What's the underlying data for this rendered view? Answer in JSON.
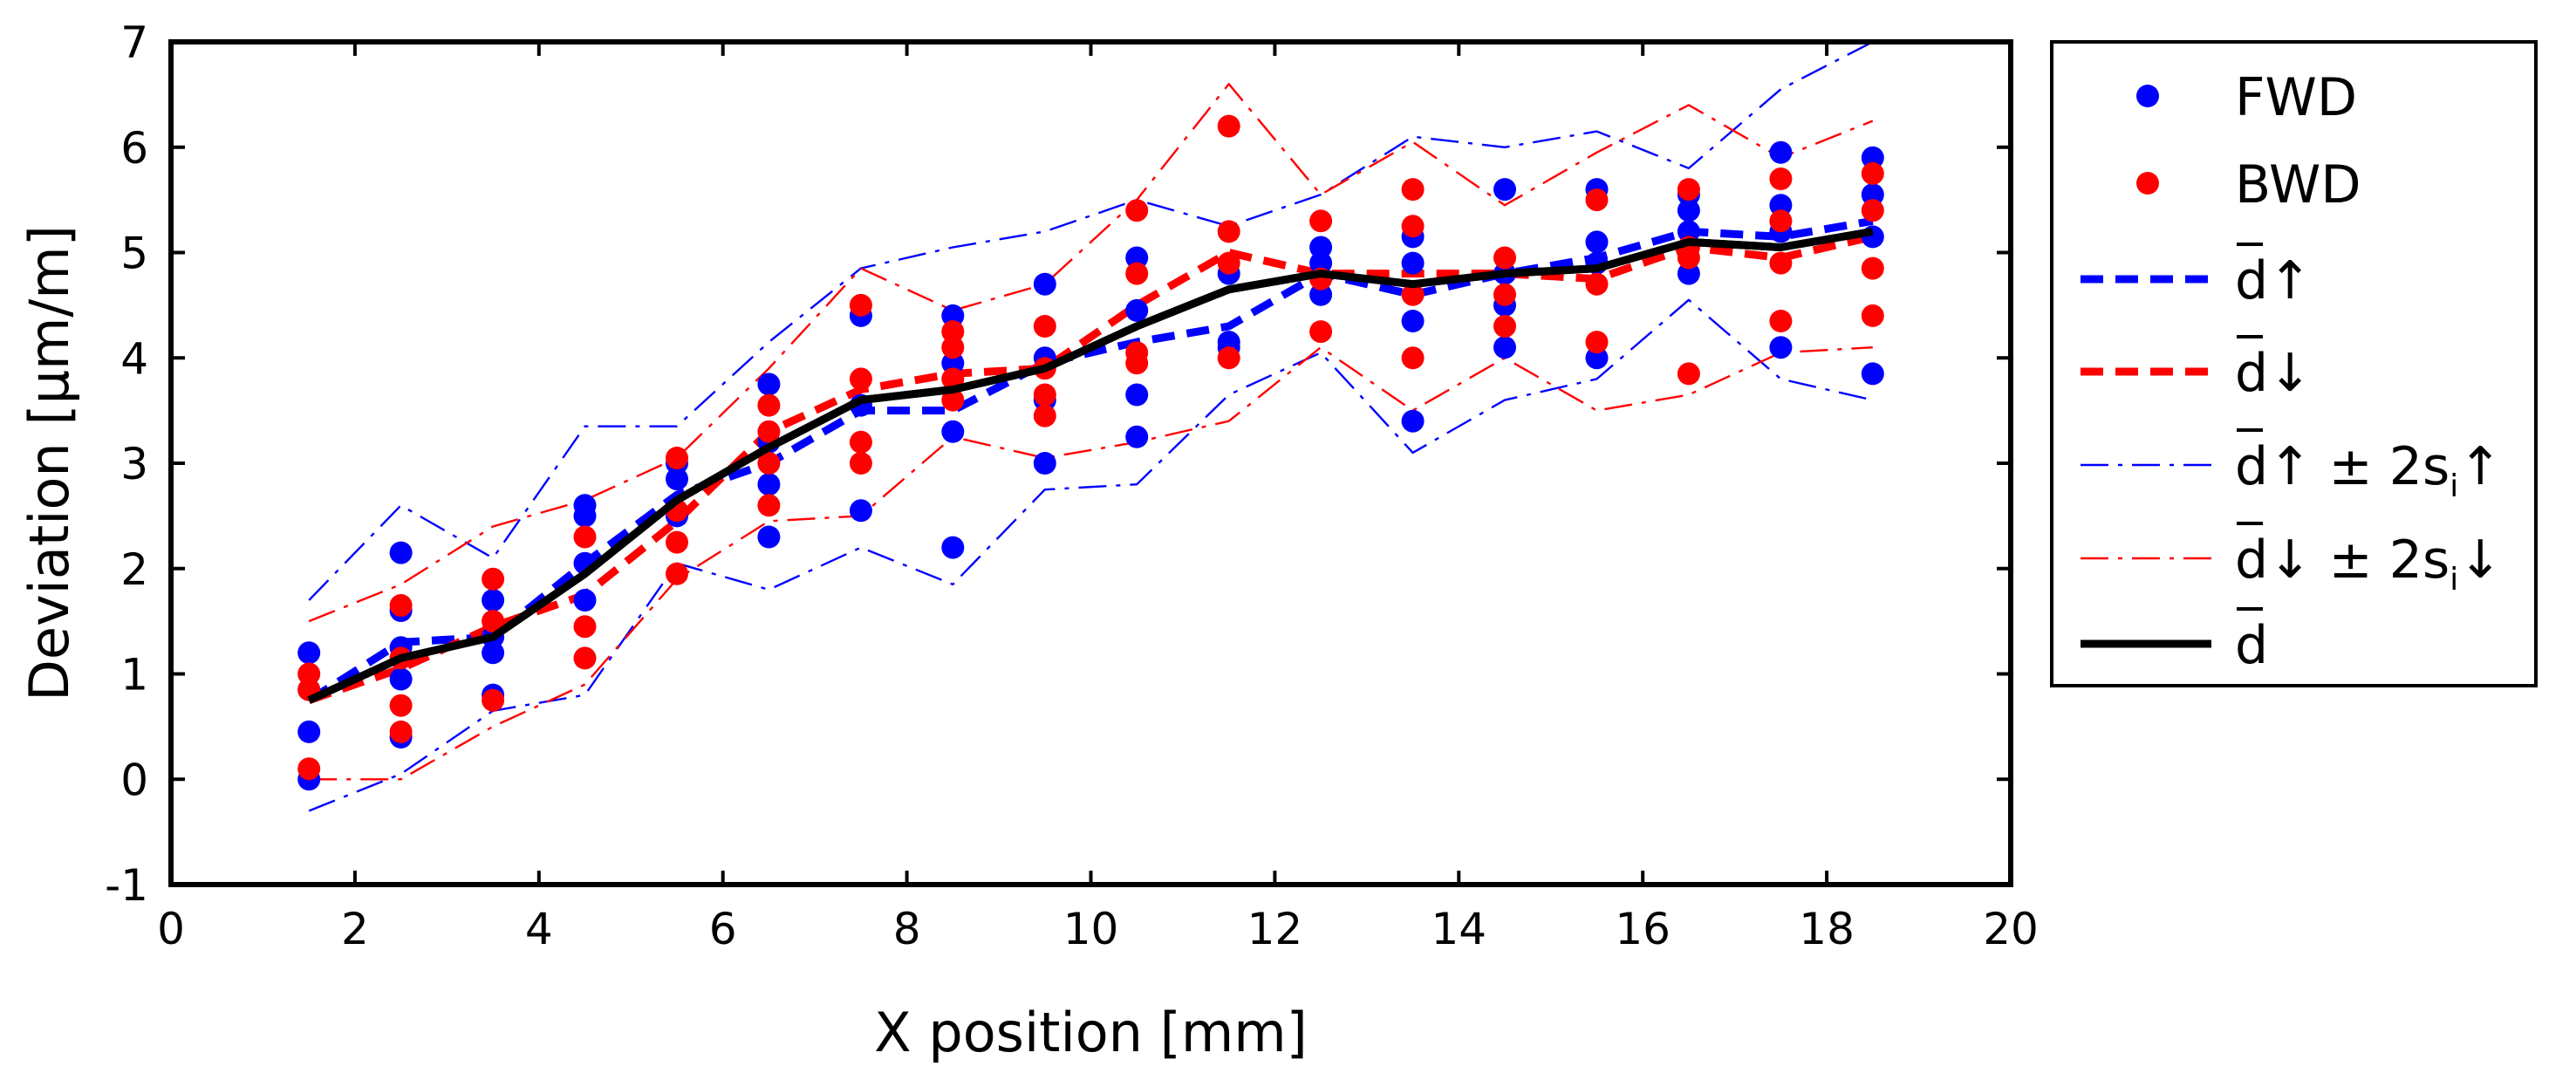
{
  "chart_data": {
    "type": "scatter",
    "title": "",
    "xlabel": "X position [mm]",
    "ylabel": "Deviation [μm/m]",
    "xlim": [
      0,
      20
    ],
    "ylim": [
      -1,
      7
    ],
    "xticks": [
      0,
      2,
      4,
      6,
      8,
      10,
      12,
      14,
      16,
      18,
      20
    ],
    "yticks": [
      -1,
      0,
      1,
      2,
      3,
      4,
      5,
      6,
      7
    ],
    "grid": false,
    "legend_position": "outside-right",
    "x": [
      1.5,
      2.5,
      3.5,
      4.5,
      5.5,
      6.5,
      7.5,
      8.5,
      9.5,
      10.5,
      11.5,
      12.5,
      13.5,
      14.5,
      15.5,
      16.5,
      17.5,
      18.5
    ],
    "scatter_series": [
      {
        "name": "FWD",
        "color": "#0000ff",
        "points": [
          [
            1.5,
            0.0
          ],
          [
            1.5,
            0.45
          ],
          [
            1.5,
            0.85
          ],
          [
            1.5,
            1.2
          ],
          [
            2.5,
            0.4
          ],
          [
            2.5,
            0.95
          ],
          [
            2.5,
            1.25
          ],
          [
            2.5,
            1.6
          ],
          [
            2.5,
            2.15
          ],
          [
            3.5,
            0.8
          ],
          [
            3.5,
            1.2
          ],
          [
            3.5,
            1.35
          ],
          [
            3.5,
            1.7
          ],
          [
            4.5,
            1.7
          ],
          [
            4.5,
            2.05
          ],
          [
            4.5,
            2.5
          ],
          [
            4.5,
            2.6
          ],
          [
            5.5,
            2.5
          ],
          [
            5.5,
            2.85
          ],
          [
            5.5,
            3.0
          ],
          [
            6.5,
            2.3
          ],
          [
            6.5,
            2.8
          ],
          [
            6.5,
            3.2
          ],
          [
            6.5,
            3.75
          ],
          [
            7.5,
            2.55
          ],
          [
            7.5,
            3.55
          ],
          [
            7.5,
            4.4
          ],
          [
            8.5,
            2.2
          ],
          [
            8.5,
            3.3
          ],
          [
            8.5,
            3.95
          ],
          [
            8.5,
            4.4
          ],
          [
            9.5,
            3.0
          ],
          [
            9.5,
            3.6
          ],
          [
            9.5,
            4.0
          ],
          [
            9.5,
            4.7
          ],
          [
            10.5,
            3.25
          ],
          [
            10.5,
            3.65
          ],
          [
            10.5,
            4.45
          ],
          [
            10.5,
            4.95
          ],
          [
            11.5,
            4.1
          ],
          [
            11.5,
            4.15
          ],
          [
            11.5,
            4.8
          ],
          [
            12.5,
            4.6
          ],
          [
            12.5,
            4.9
          ],
          [
            12.5,
            5.05
          ],
          [
            13.5,
            3.4
          ],
          [
            13.5,
            4.35
          ],
          [
            13.5,
            4.9
          ],
          [
            13.5,
            5.15
          ],
          [
            14.5,
            4.1
          ],
          [
            14.5,
            4.5
          ],
          [
            14.5,
            4.8
          ],
          [
            14.5,
            5.6
          ],
          [
            15.5,
            4.0
          ],
          [
            15.5,
            4.9
          ],
          [
            15.5,
            5.1
          ],
          [
            15.5,
            5.6
          ],
          [
            16.5,
            4.8
          ],
          [
            16.5,
            5.2
          ],
          [
            16.5,
            5.4
          ],
          [
            16.5,
            5.55
          ],
          [
            17.5,
            4.1
          ],
          [
            17.5,
            5.2
          ],
          [
            17.5,
            5.45
          ],
          [
            17.5,
            5.95
          ],
          [
            18.5,
            3.85
          ],
          [
            18.5,
            5.15
          ],
          [
            18.5,
            5.55
          ],
          [
            18.5,
            5.9
          ]
        ]
      },
      {
        "name": "BWD",
        "color": "#ff0000",
        "points": [
          [
            1.5,
            0.1
          ],
          [
            1.5,
            0.85
          ],
          [
            1.5,
            1.0
          ],
          [
            2.5,
            0.45
          ],
          [
            2.5,
            0.7
          ],
          [
            2.5,
            1.15
          ],
          [
            2.5,
            1.65
          ],
          [
            3.5,
            0.75
          ],
          [
            3.5,
            1.5
          ],
          [
            3.5,
            1.9
          ],
          [
            4.5,
            1.15
          ],
          [
            4.5,
            1.45
          ],
          [
            4.5,
            2.3
          ],
          [
            5.5,
            1.95
          ],
          [
            5.5,
            2.25
          ],
          [
            5.5,
            2.55
          ],
          [
            5.5,
            3.05
          ],
          [
            6.5,
            2.6
          ],
          [
            6.5,
            3.0
          ],
          [
            6.5,
            3.3
          ],
          [
            6.5,
            3.55
          ],
          [
            7.5,
            3.0
          ],
          [
            7.5,
            3.2
          ],
          [
            7.5,
            3.8
          ],
          [
            7.5,
            4.5
          ],
          [
            8.5,
            3.6
          ],
          [
            8.5,
            3.8
          ],
          [
            8.5,
            4.1
          ],
          [
            8.5,
            4.25
          ],
          [
            9.5,
            3.45
          ],
          [
            9.5,
            3.65
          ],
          [
            9.5,
            3.9
          ],
          [
            9.5,
            4.3
          ],
          [
            10.5,
            3.95
          ],
          [
            10.5,
            4.05
          ],
          [
            10.5,
            4.8
          ],
          [
            10.5,
            5.4
          ],
          [
            11.5,
            4.0
          ],
          [
            11.5,
            4.9
          ],
          [
            11.5,
            5.2
          ],
          [
            11.5,
            6.2
          ],
          [
            12.5,
            4.25
          ],
          [
            12.5,
            4.75
          ],
          [
            12.5,
            5.3
          ],
          [
            13.5,
            4.0
          ],
          [
            13.5,
            4.6
          ],
          [
            13.5,
            5.25
          ],
          [
            13.5,
            5.6
          ],
          [
            14.5,
            4.3
          ],
          [
            14.5,
            4.6
          ],
          [
            14.5,
            4.95
          ],
          [
            15.5,
            4.15
          ],
          [
            15.5,
            4.7
          ],
          [
            15.5,
            5.5
          ],
          [
            16.5,
            3.85
          ],
          [
            16.5,
            4.95
          ],
          [
            16.5,
            5.05
          ],
          [
            16.5,
            5.6
          ],
          [
            17.5,
            4.35
          ],
          [
            17.5,
            4.9
          ],
          [
            17.5,
            5.3
          ],
          [
            17.5,
            5.7
          ],
          [
            18.5,
            4.4
          ],
          [
            18.5,
            4.85
          ],
          [
            18.5,
            5.4
          ],
          [
            18.5,
            5.75
          ]
        ]
      }
    ],
    "line_series": [
      {
        "name": "d̅↑",
        "color": "#0000ff",
        "style": "dashed",
        "values": [
          0.75,
          1.3,
          1.35,
          2.05,
          2.7,
          3.0,
          3.5,
          3.5,
          3.95,
          4.15,
          4.3,
          4.8,
          4.6,
          4.8,
          4.95,
          5.2,
          5.15,
          5.3
        ]
      },
      {
        "name": "d̅↓",
        "color": "#ff0000",
        "style": "dashed",
        "values": [
          0.75,
          1.05,
          1.45,
          1.75,
          2.45,
          3.3,
          3.7,
          3.85,
          3.9,
          4.5,
          5.0,
          4.8,
          4.8,
          4.8,
          4.75,
          5.05,
          4.95,
          5.15
        ]
      },
      {
        "name": "d̅↑ + 2sᵢ↑",
        "color": "#0000ff",
        "style": "dashdot",
        "values": [
          1.7,
          2.6,
          2.1,
          3.35,
          3.35,
          4.15,
          4.85,
          5.05,
          5.2,
          5.5,
          5.25,
          5.55,
          6.1,
          6.0,
          6.15,
          5.8,
          6.55,
          7.0
        ]
      },
      {
        "name": "d̅↑ − 2sᵢ↑",
        "color": "#0000ff",
        "style": "dashdot",
        "values": [
          -0.3,
          0.05,
          0.65,
          0.8,
          2.05,
          1.8,
          2.2,
          1.85,
          2.75,
          2.8,
          3.65,
          4.05,
          3.1,
          3.6,
          3.8,
          4.55,
          3.8,
          3.6
        ]
      },
      {
        "name": "d̅↓ + 2sᵢ↓",
        "color": "#ff0000",
        "style": "dashdot",
        "values": [
          1.5,
          1.85,
          2.4,
          2.65,
          3.05,
          3.9,
          4.85,
          4.45,
          4.7,
          5.5,
          6.6,
          5.55,
          6.05,
          5.45,
          5.95,
          6.4,
          5.9,
          6.25
        ]
      },
      {
        "name": "d̅↓ − 2sᵢ↓",
        "color": "#ff0000",
        "style": "dashdot",
        "values": [
          0.0,
          0.0,
          0.5,
          0.9,
          1.9,
          2.45,
          2.5,
          3.25,
          3.05,
          3.2,
          3.4,
          4.1,
          3.5,
          4.0,
          3.5,
          3.65,
          4.05,
          4.1
        ]
      },
      {
        "name": "d̅",
        "color": "#000000",
        "style": "solid",
        "values": [
          0.75,
          1.15,
          1.35,
          1.95,
          2.65,
          3.15,
          3.6,
          3.7,
          3.9,
          4.3,
          4.65,
          4.8,
          4.7,
          4.8,
          4.85,
          5.1,
          5.05,
          5.2
        ]
      }
    ],
    "legend": [
      {
        "label": "FWD",
        "base": "",
        "suffix": "",
        "marker": "dot",
        "color": "#0000ff"
      },
      {
        "label": "BWD",
        "base": "",
        "suffix": "",
        "marker": "dot",
        "color": "#ff0000"
      },
      {
        "label": "",
        "base": "d",
        "suffix": "↑",
        "marker": "dashed",
        "color": "#0000ff"
      },
      {
        "label": "",
        "base": "d",
        "suffix": "↓",
        "marker": "dashed",
        "color": "#ff0000"
      },
      {
        "label": "",
        "base": "d",
        "suffix": "↑ ± 2s",
        "sub": "i",
        "tail": "↑",
        "marker": "dashdot",
        "color": "#0000ff"
      },
      {
        "label": "",
        "base": "d",
        "suffix": "↓ ± 2s",
        "sub": "i",
        "tail": "↓",
        "marker": "dashdot",
        "color": "#ff0000"
      },
      {
        "label": "",
        "base": "d",
        "suffix": "",
        "marker": "solid",
        "color": "#000000"
      }
    ]
  }
}
